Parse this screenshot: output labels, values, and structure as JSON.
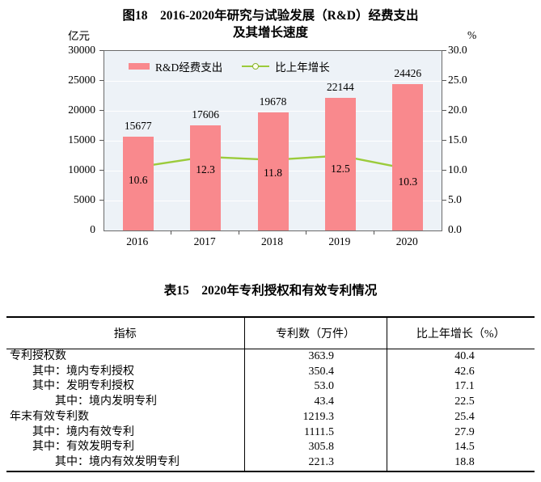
{
  "figure": {
    "title_line1": "图18　2016-2020年研究与试验发展（R&D）经费支出",
    "title_line2": "及其增长速度",
    "left_axis_unit": "亿元",
    "right_axis_unit": "%"
  },
  "chart_data": {
    "type": "bar+line",
    "categories": [
      "2016",
      "2017",
      "2018",
      "2019",
      "2020"
    ],
    "series": [
      {
        "name": "R&D经费支出",
        "type": "bar",
        "axis": "left",
        "unit": "亿元",
        "color": "#F9898D",
        "values": [
          15677,
          17606,
          19678,
          22144,
          24426
        ]
      },
      {
        "name": "比上年增长",
        "type": "line",
        "axis": "right",
        "unit": "%",
        "color": "#9BCB3B",
        "marker_fill": "#FEFFF0",
        "marker_stroke": "#86B22D",
        "values": [
          10.6,
          12.3,
          11.8,
          12.5,
          10.3
        ]
      }
    ],
    "left_axis": {
      "label": "亿元",
      "min": 0,
      "max": 30000,
      "tick_step": 5000,
      "ticks": [
        "30000",
        "25000",
        "20000",
        "15000",
        "10000",
        "5000",
        "0"
      ]
    },
    "right_axis": {
      "label": "%",
      "min": 0,
      "max": 30,
      "tick_step": 5,
      "ticks": [
        "30.0",
        "25.0",
        "20.0",
        "15.0",
        "10.0",
        "5.0",
        "0.0"
      ]
    },
    "legend_position": "top-inside",
    "grid": "horizontal-white-lines",
    "plot_bg": "#EDF2F7"
  },
  "table": {
    "title": "表15　2020年专利授权和有效专利情况",
    "headers": [
      "指标",
      "专利数（万件）",
      "比上年增长（%）"
    ],
    "rows": [
      {
        "indicator": "专利授权数",
        "patents": "363.9",
        "growth": "40.4"
      },
      {
        "indicator": "其中：境内专利授权",
        "patents": "350.4",
        "growth": "42.6"
      },
      {
        "indicator": "其中：发明专利授权",
        "patents": "53.0",
        "growth": "17.1"
      },
      {
        "indicator": "其中：境内发明专利",
        "patents": "43.4",
        "growth": "22.5"
      },
      {
        "indicator": "年末有效专利数",
        "patents": "1219.3",
        "growth": "25.4"
      },
      {
        "indicator": "其中：境内有效专利",
        "patents": "1111.5",
        "growth": "27.9"
      },
      {
        "indicator": "其中：有效发明专利",
        "patents": "305.8",
        "growth": "14.5"
      },
      {
        "indicator": "其中：境内有效发明专利",
        "patents": "221.3",
        "growth": "18.8"
      }
    ]
  }
}
